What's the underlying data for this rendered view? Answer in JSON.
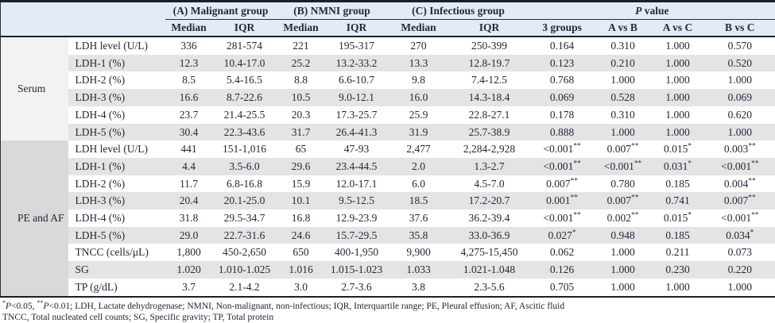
{
  "table": {
    "groups": [
      {
        "id": "a",
        "label": "(A) Malignant group"
      },
      {
        "id": "b",
        "label": "(B) NMNI group"
      },
      {
        "id": "c",
        "label": "(C) Infectious group"
      }
    ],
    "p_value_header": {
      "italic": "P",
      "rest": " value"
    },
    "sub_headers": [
      "Median",
      "IQR",
      "Median",
      "IQR",
      "Median",
      "IQR",
      "3 groups",
      "A vs B",
      "A vs C",
      "B vs C"
    ],
    "column_ids": [
      "median-a",
      "iqr-a",
      "median-b",
      "iqr-b",
      "median-c",
      "iqr-c",
      "p-3groups",
      "p-a-vs-b",
      "p-a-vs-c",
      "p-b-vs-c"
    ],
    "sections": [
      {
        "id": "serum",
        "label": "Serum",
        "rows": [
          {
            "label": "LDH level (U/L)",
            "values": [
              "336",
              "281-574",
              "221",
              "195-317",
              "270",
              "250-399",
              "0.164",
              "0.310",
              "1.000",
              "0.570"
            ]
          },
          {
            "label": "LDH-1 (%)",
            "values": [
              "12.3",
              "10.4-17.0",
              "25.2",
              "13.2-33.2",
              "13.3",
              "12.8-19.7",
              "0.123",
              "0.210",
              "1.000",
              "0.520"
            ]
          },
          {
            "label": "LDH-2 (%)",
            "values": [
              "8.5",
              "5.4-16.5",
              "8.8",
              "6.6-10.7",
              "9.8",
              "7.4-12.5",
              "0.768",
              "1.000",
              "1.000",
              "1.000"
            ]
          },
          {
            "label": "LDH-3 (%)",
            "values": [
              "16.6",
              "8.7-22.6",
              "10.5",
              "9.0-12.1",
              "16.0",
              "14.3-18.4",
              "0.069",
              "0.528",
              "1.000",
              "0.069"
            ]
          },
          {
            "label": "LDH-4 (%)",
            "values": [
              "23.7",
              "21.4-25.5",
              "20.3",
              "17.3-25.7",
              "25.9",
              "22.8-27.1",
              "0.178",
              "0.310",
              "1.000",
              "0.620"
            ]
          },
          {
            "label": "LDH-5 (%)",
            "values": [
              "30.4",
              "22.3-43.6",
              "31.7",
              "26.4-41.3",
              "31.9",
              "25.7-38.9",
              "0.888",
              "1.000",
              "1.000",
              "1.000"
            ]
          }
        ]
      },
      {
        "id": "pe-af",
        "label": "PE and AF",
        "rows": [
          {
            "label": "LDH level (U/L)",
            "values": [
              "441",
              "151-1,016",
              "65",
              "47-93",
              "2,477",
              "2,284-2,928",
              "<0.001**",
              "0.007**",
              "0.015*",
              "0.003**"
            ]
          },
          {
            "label": "LDH-1 (%)",
            "values": [
              "4.4",
              "3.5-6.0",
              "29.6",
              "23.4-44.5",
              "2.0",
              "1.3-2.7",
              "<0.001**",
              "<0.001**",
              "0.031*",
              "<0.001**"
            ]
          },
          {
            "label": "LDH-2 (%)",
            "values": [
              "11.7",
              "6.8-16.8",
              "15.9",
              "12.0-17.1",
              "6.0",
              "4.5-7.0",
              "0.007**",
              "0.780",
              "0.185",
              "0.004**"
            ]
          },
          {
            "label": "LDH-3 (%)",
            "values": [
              "20.4",
              "20.1-25.0",
              "10.1",
              "9.5-12.5",
              "18.5",
              "17.2-20.7",
              "0.001**",
              "0.007**",
              "0.741",
              "0.007**"
            ]
          },
          {
            "label": "LDH-4 (%)",
            "values": [
              "31.8",
              "29.5-34.7",
              "16.8",
              "12.9-23.9",
              "37.6",
              "36.2-39.4",
              "<0.001**",
              "0.002**",
              "0.015*",
              "<0.001**"
            ]
          },
          {
            "label": "LDH-5 (%)",
            "values": [
              "29.0",
              "22.7-31.6",
              "24.6",
              "15.7-29.5",
              "35.8",
              "33.0-36.9",
              "0.027*",
              "0.948",
              "0.185",
              "0.034*"
            ]
          },
          {
            "label": "TNCC (cells/μL)",
            "values": [
              "1,800",
              "450-2,650",
              "650",
              "400-1,950",
              "9,900",
              "4,275-15,450",
              "0.062",
              "1.000",
              "0.211",
              "0.073"
            ]
          },
          {
            "label": "SG",
            "values": [
              "1.020",
              "1.010-1.025",
              "1.016",
              "1.015-1.023",
              "1.033",
              "1.021-1.048",
              "0.126",
              "1.000",
              "0.230",
              "0.220"
            ]
          },
          {
            "label": "TP (g/dL)",
            "values": [
              "3.7",
              "2.1-4.2",
              "3.0",
              "2.7-3.6",
              "3.8",
              "2.3-5.6",
              "0.705",
              "1.000",
              "1.000",
              "1.000"
            ]
          }
        ]
      }
    ],
    "footnotes": [
      "*P<0.05, **P<0.01; LDH, Lactate dehydrogenase; NMNI, Non-malignant, non-infectious; IQR, Interquartile range; PE,  Pleural effusion; AF, Ascitic fluid",
      "TNCC, Total nucleated cell counts; SG, Specific gravity; TP, Total protein"
    ]
  },
  "colors": {
    "header_bg": "#e3ecf6",
    "row_alt_bg": "#e4e4e4",
    "stub_serum_bg": "#f2f2f2",
    "stub_pe_af_bg": "#d9d9d9",
    "border_dark": "#1b1f2a",
    "text": "#23283a"
  }
}
